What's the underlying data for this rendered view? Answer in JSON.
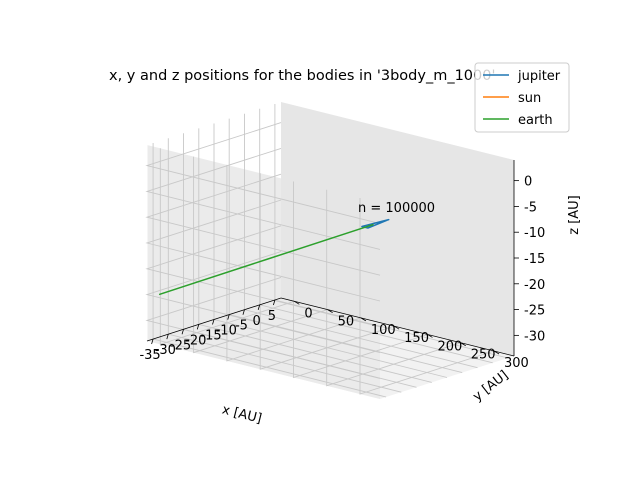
{
  "chart_data": {
    "type": "line",
    "projection": "3d",
    "title": "x, y and z positions for the bodies in '3body_m_1000'",
    "xlabel": "x [AU]",
    "ylabel": "y [AU]",
    "zlabel": "z [AU]",
    "xlim": [
      -37,
      7
    ],
    "ylim": [
      -20,
      330
    ],
    "zlim": [
      -34,
      4
    ],
    "xticks": [
      -35,
      -30,
      -25,
      -20,
      -15,
      -10,
      -5,
      0,
      5
    ],
    "yticks": [
      0,
      50,
      100,
      150,
      200,
      250,
      300
    ],
    "zticks": [
      0,
      -5,
      -10,
      -15,
      -20,
      -25,
      -30
    ],
    "grid": true,
    "legend_position": "top-right",
    "annotation": "n = 100000",
    "series": [
      {
        "name": "jupiter",
        "color": "#1f77b4",
        "x": [
          5.2,
          -2.6,
          -2.6,
          5.2,
          -2.6,
          -2.6,
          5.2,
          -2.6,
          -2.6,
          5.2,
          -2.6,
          -2.6,
          5.2
        ],
        "y": [
          150,
          154.5,
          145.5,
          150,
          154.5,
          145.5,
          150,
          154.5,
          145.5,
          150,
          154.5,
          145.5,
          150
        ],
        "z": [
          -13,
          -13,
          -13,
          -13,
          -13,
          -13,
          -13,
          -13,
          -13,
          -13,
          -13,
          -13,
          -13
        ]
      },
      {
        "name": "sun",
        "color": "#ff7f0e",
        "x": [
          0,
          -0.02,
          0
        ],
        "y": [
          150,
          150.02,
          150.04
        ],
        "z": [
          -13,
          -13,
          -13
        ]
      },
      {
        "name": "earth",
        "color": "#2ca02c",
        "x": [
          -35,
          -17.5,
          0
        ],
        "y": [
          -10,
          70,
          150
        ],
        "z": [
          -25,
          -19,
          -13
        ]
      }
    ]
  }
}
